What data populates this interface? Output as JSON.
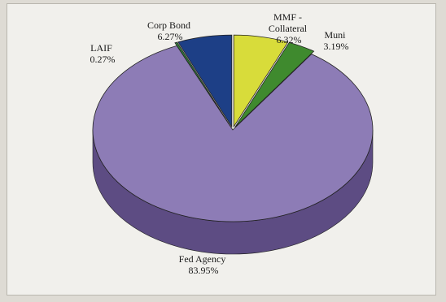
{
  "chart_data": {
    "type": "pie",
    "three_d": true,
    "slices": [
      {
        "label_lines": [
          "MMF -",
          "Collateral"
        ],
        "pct_text": "6.32%",
        "value": 6.32,
        "color": "#d8dc3a",
        "side": "#a3a62a"
      },
      {
        "label_lines": [
          "Muni"
        ],
        "pct_text": "3.19%",
        "value": 3.19,
        "color": "#3f8a2e",
        "side": "#2b6320"
      },
      {
        "label_lines": [
          "Fed Agency"
        ],
        "pct_text": "83.95%",
        "value": 83.95,
        "color": "#8d7cb6",
        "side": "#5d4c83"
      },
      {
        "label_lines": [
          "LAIF"
        ],
        "pct_text": "0.27%",
        "value": 0.27,
        "color": "#2f7a39",
        "side": "#1f5527"
      },
      {
        "label_lines": [
          "Corp Bond"
        ],
        "pct_text": "6.27%",
        "value": 6.27,
        "color": "#1d3f86",
        "side": "#132b5d"
      }
    ]
  }
}
